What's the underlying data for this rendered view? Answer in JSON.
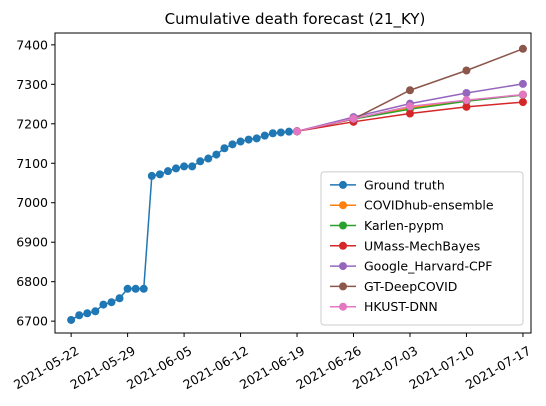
{
  "chart_data": {
    "type": "line",
    "title": "Cumulative death forecast (21_KY)",
    "xlabel": "",
    "ylabel": "",
    "x_ticks": [
      "2021-05-22",
      "2021-05-29",
      "2021-06-05",
      "2021-06-12",
      "2021-06-19",
      "2021-06-26",
      "2021-07-03",
      "2021-07-10",
      "2021-07-17"
    ],
    "xlim": [
      "2021-05-20",
      "2021-07-18"
    ],
    "ylim": [
      6670,
      7430
    ],
    "y_ticks": [
      6700,
      6800,
      6900,
      7000,
      7100,
      7200,
      7300,
      7400
    ],
    "grid": false,
    "legend_position": "lower-right",
    "series": [
      {
        "name": "Ground truth",
        "color": "#1f77b4",
        "x": [
          "2021-05-22",
          "2021-05-23",
          "2021-05-24",
          "2021-05-25",
          "2021-05-26",
          "2021-05-27",
          "2021-05-28",
          "2021-05-29",
          "2021-05-30",
          "2021-05-31",
          "2021-06-01",
          "2021-06-02",
          "2021-06-03",
          "2021-06-04",
          "2021-06-05",
          "2021-06-06",
          "2021-06-07",
          "2021-06-08",
          "2021-06-09",
          "2021-06-10",
          "2021-06-11",
          "2021-06-12",
          "2021-06-13",
          "2021-06-14",
          "2021-06-15",
          "2021-06-16",
          "2021-06-17",
          "2021-06-18",
          "2021-06-19"
        ],
        "y": [
          6703,
          6715,
          6720,
          6725,
          6742,
          6748,
          6758,
          6782,
          6782,
          6782,
          7068,
          7072,
          7080,
          7087,
          7092,
          7092,
          7105,
          7112,
          7122,
          7138,
          7148,
          7155,
          7160,
          7163,
          7170,
          7176,
          7178,
          7180,
          7181
        ]
      },
      {
        "name": "COVIDhub-ensemble",
        "color": "#ff7f0e",
        "x": [
          "2021-06-19",
          "2021-06-26",
          "2021-07-03",
          "2021-07-10",
          "2021-07-17"
        ],
        "y": [
          7181,
          7212,
          7240,
          7258,
          7274
        ]
      },
      {
        "name": "Karlen-pypm",
        "color": "#2ca02c",
        "x": [
          "2021-06-19",
          "2021-06-26",
          "2021-07-03",
          "2021-07-10",
          "2021-07-17"
        ],
        "y": [
          7181,
          7212,
          7237,
          7257,
          7273
        ]
      },
      {
        "name": "UMass-MechBayes",
        "color": "#d62728",
        "x": [
          "2021-06-19",
          "2021-06-26",
          "2021-07-03",
          "2021-07-10",
          "2021-07-17"
        ],
        "y": [
          7181,
          7205,
          7226,
          7243,
          7255
        ]
      },
      {
        "name": "Google_Harvard-CPF",
        "color": "#9467bd",
        "x": [
          "2021-06-19",
          "2021-06-26",
          "2021-07-03",
          "2021-07-10",
          "2021-07-17"
        ],
        "y": [
          7181,
          7217,
          7251,
          7278,
          7301
        ]
      },
      {
        "name": "GT-DeepCOVID",
        "color": "#8c564b",
        "x": [
          "2021-06-19",
          "2021-06-26",
          "2021-07-03",
          "2021-07-10",
          "2021-07-17"
        ],
        "y": [
          7181,
          7212,
          7285,
          7335,
          7390
        ]
      },
      {
        "name": "HKUST-DNN",
        "color": "#e377c2",
        "x": [
          "2021-06-19",
          "2021-06-26",
          "2021-07-03",
          "2021-07-10",
          "2021-07-17"
        ],
        "y": [
          7181,
          7213,
          7244,
          7260,
          7274
        ]
      }
    ]
  }
}
